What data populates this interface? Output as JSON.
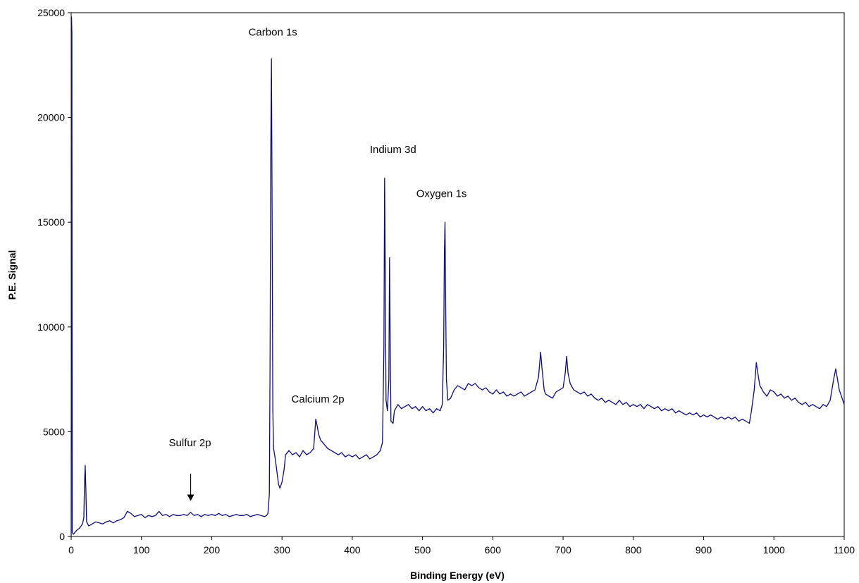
{
  "chart_data": {
    "type": "line",
    "title": "",
    "xlabel": "Binding Energy (eV)",
    "ylabel": "P.E. Signal",
    "xlim": [
      0,
      1100
    ],
    "ylim": [
      0,
      25000
    ],
    "x_ticks": [
      0,
      100,
      200,
      300,
      400,
      500,
      600,
      700,
      800,
      900,
      1000,
      1100
    ],
    "y_ticks": [
      0,
      5000,
      10000,
      15000,
      20000,
      25000
    ],
    "x_tick_labels": [
      "0",
      "100",
      "200",
      "300",
      "400",
      "500",
      "600",
      "700",
      "800",
      "900",
      "1000",
      "1100"
    ],
    "y_tick_labels": [
      "0",
      "5000",
      "10000",
      "15000",
      "20000",
      "25000"
    ],
    "grid": false,
    "legend": "none",
    "line_color": "#0a0a7a",
    "series": [
      {
        "points": [
          [
            0,
            0
          ],
          [
            0.5,
            24800
          ],
          [
            1,
            24000
          ],
          [
            1.5,
            200
          ],
          [
            3,
            100
          ],
          [
            8,
            300
          ],
          [
            12,
            400
          ],
          [
            16,
            600
          ],
          [
            18,
            900
          ],
          [
            19,
            2500
          ],
          [
            20,
            3400
          ],
          [
            21,
            2200
          ],
          [
            22,
            700
          ],
          [
            25,
            500
          ],
          [
            30,
            600
          ],
          [
            35,
            700
          ],
          [
            40,
            650
          ],
          [
            45,
            600
          ],
          [
            50,
            700
          ],
          [
            55,
            750
          ],
          [
            60,
            650
          ],
          [
            65,
            750
          ],
          [
            70,
            800
          ],
          [
            75,
            900
          ],
          [
            80,
            1200
          ],
          [
            85,
            1100
          ],
          [
            90,
            950
          ],
          [
            95,
            1000
          ],
          [
            100,
            1050
          ],
          [
            105,
            900
          ],
          [
            110,
            1000
          ],
          [
            115,
            950
          ],
          [
            120,
            1000
          ],
          [
            125,
            1200
          ],
          [
            130,
            1000
          ],
          [
            135,
            1050
          ],
          [
            140,
            950
          ],
          [
            145,
            1050
          ],
          [
            150,
            1000
          ],
          [
            155,
            1000
          ],
          [
            160,
            1050
          ],
          [
            165,
            1000
          ],
          [
            170,
            1150
          ],
          [
            175,
            1000
          ],
          [
            180,
            1050
          ],
          [
            185,
            950
          ],
          [
            190,
            1050
          ],
          [
            195,
            1000
          ],
          [
            200,
            1050
          ],
          [
            205,
            1000
          ],
          [
            210,
            1100
          ],
          [
            215,
            1000
          ],
          [
            220,
            1050
          ],
          [
            225,
            950
          ],
          [
            230,
            1000
          ],
          [
            235,
            1050
          ],
          [
            240,
            1000
          ],
          [
            245,
            1000
          ],
          [
            250,
            1050
          ],
          [
            255,
            950
          ],
          [
            260,
            1000
          ],
          [
            265,
            1050
          ],
          [
            270,
            1000
          ],
          [
            275,
            950
          ],
          [
            278,
            1000
          ],
          [
            280,
            1100
          ],
          [
            282,
            2000
          ],
          [
            283,
            8000
          ],
          [
            284,
            18000
          ],
          [
            285,
            22800
          ],
          [
            286,
            15000
          ],
          [
            287,
            6000
          ],
          [
            288,
            4200
          ],
          [
            290,
            3800
          ],
          [
            292,
            3300
          ],
          [
            295,
            2500
          ],
          [
            297,
            2300
          ],
          [
            300,
            2600
          ],
          [
            303,
            3200
          ],
          [
            305,
            3900
          ],
          [
            310,
            4100
          ],
          [
            315,
            3900
          ],
          [
            320,
            4000
          ],
          [
            325,
            3800
          ],
          [
            330,
            4100
          ],
          [
            335,
            3900
          ],
          [
            340,
            4000
          ],
          [
            345,
            4200
          ],
          [
            348,
            5600
          ],
          [
            350,
            5300
          ],
          [
            352,
            4900
          ],
          [
            355,
            4600
          ],
          [
            360,
            4400
          ],
          [
            365,
            4200
          ],
          [
            370,
            4100
          ],
          [
            375,
            4000
          ],
          [
            380,
            3900
          ],
          [
            385,
            4000
          ],
          [
            390,
            3800
          ],
          [
            395,
            3900
          ],
          [
            400,
            3800
          ],
          [
            405,
            3900
          ],
          [
            410,
            3700
          ],
          [
            415,
            3800
          ],
          [
            420,
            3900
          ],
          [
            425,
            3700
          ],
          [
            430,
            3800
          ],
          [
            435,
            3900
          ],
          [
            440,
            4100
          ],
          [
            443,
            4500
          ],
          [
            445,
            9000
          ],
          [
            446,
            17100
          ],
          [
            447,
            12000
          ],
          [
            448,
            6500
          ],
          [
            450,
            6000
          ],
          [
            452,
            7500
          ],
          [
            453,
            13300
          ],
          [
            454,
            9000
          ],
          [
            455,
            5500
          ],
          [
            458,
            5400
          ],
          [
            460,
            6000
          ],
          [
            465,
            6300
          ],
          [
            470,
            6100
          ],
          [
            475,
            6200
          ],
          [
            480,
            6300
          ],
          [
            485,
            6100
          ],
          [
            490,
            6200
          ],
          [
            495,
            6000
          ],
          [
            500,
            6200
          ],
          [
            505,
            6000
          ],
          [
            510,
            6100
          ],
          [
            515,
            5900
          ],
          [
            520,
            6100
          ],
          [
            525,
            6000
          ],
          [
            528,
            6300
          ],
          [
            530,
            9000
          ],
          [
            531,
            13500
          ],
          [
            532,
            15000
          ],
          [
            533,
            11000
          ],
          [
            534,
            7500
          ],
          [
            536,
            6500
          ],
          [
            540,
            6600
          ],
          [
            545,
            7000
          ],
          [
            550,
            7200
          ],
          [
            555,
            7100
          ],
          [
            560,
            7000
          ],
          [
            565,
            7300
          ],
          [
            570,
            7200
          ],
          [
            575,
            7300
          ],
          [
            580,
            7100
          ],
          [
            585,
            7000
          ],
          [
            590,
            7100
          ],
          [
            595,
            6900
          ],
          [
            600,
            6800
          ],
          [
            605,
            7000
          ],
          [
            610,
            6800
          ],
          [
            615,
            6900
          ],
          [
            620,
            6700
          ],
          [
            625,
            6800
          ],
          [
            630,
            6700
          ],
          [
            635,
            6800
          ],
          [
            640,
            6900
          ],
          [
            645,
            6700
          ],
          [
            650,
            6800
          ],
          [
            655,
            6900
          ],
          [
            660,
            7000
          ],
          [
            665,
            7600
          ],
          [
            668,
            8800
          ],
          [
            670,
            8000
          ],
          [
            673,
            7000
          ],
          [
            675,
            6800
          ],
          [
            680,
            6700
          ],
          [
            685,
            6600
          ],
          [
            690,
            6900
          ],
          [
            695,
            7000
          ],
          [
            700,
            7100
          ],
          [
            703,
            7800
          ],
          [
            705,
            8600
          ],
          [
            707,
            7800
          ],
          [
            710,
            7300
          ],
          [
            715,
            7000
          ],
          [
            720,
            6900
          ],
          [
            725,
            6800
          ],
          [
            730,
            6900
          ],
          [
            735,
            6700
          ],
          [
            740,
            6800
          ],
          [
            745,
            6600
          ],
          [
            750,
            6500
          ],
          [
            755,
            6600
          ],
          [
            760,
            6400
          ],
          [
            765,
            6500
          ],
          [
            770,
            6400
          ],
          [
            775,
            6300
          ],
          [
            780,
            6500
          ],
          [
            785,
            6300
          ],
          [
            790,
            6400
          ],
          [
            795,
            6200
          ],
          [
            800,
            6300
          ],
          [
            805,
            6200
          ],
          [
            810,
            6300
          ],
          [
            815,
            6100
          ],
          [
            820,
            6300
          ],
          [
            825,
            6200
          ],
          [
            830,
            6100
          ],
          [
            835,
            6200
          ],
          [
            840,
            6000
          ],
          [
            845,
            6100
          ],
          [
            850,
            6000
          ],
          [
            855,
            6100
          ],
          [
            860,
            5900
          ],
          [
            865,
            6000
          ],
          [
            870,
            5900
          ],
          [
            875,
            5800
          ],
          [
            880,
            5900
          ],
          [
            885,
            5800
          ],
          [
            890,
            5900
          ],
          [
            895,
            5700
          ],
          [
            900,
            5800
          ],
          [
            905,
            5700
          ],
          [
            910,
            5800
          ],
          [
            915,
            5700
          ],
          [
            920,
            5600
          ],
          [
            925,
            5700
          ],
          [
            930,
            5600
          ],
          [
            935,
            5700
          ],
          [
            940,
            5600
          ],
          [
            945,
            5700
          ],
          [
            950,
            5500
          ],
          [
            955,
            5600
          ],
          [
            960,
            5500
          ],
          [
            965,
            5400
          ],
          [
            968,
            6000
          ],
          [
            972,
            7000
          ],
          [
            975,
            8300
          ],
          [
            978,
            7600
          ],
          [
            980,
            7200
          ],
          [
            985,
            6900
          ],
          [
            990,
            6700
          ],
          [
            995,
            7000
          ],
          [
            1000,
            6900
          ],
          [
            1005,
            6700
          ],
          [
            1010,
            6800
          ],
          [
            1015,
            6600
          ],
          [
            1020,
            6700
          ],
          [
            1025,
            6500
          ],
          [
            1030,
            6600
          ],
          [
            1035,
            6400
          ],
          [
            1040,
            6300
          ],
          [
            1045,
            6400
          ],
          [
            1050,
            6200
          ],
          [
            1055,
            6300
          ],
          [
            1060,
            6200
          ],
          [
            1065,
            6100
          ],
          [
            1070,
            6300
          ],
          [
            1075,
            6200
          ],
          [
            1080,
            6500
          ],
          [
            1085,
            7500
          ],
          [
            1088,
            8000
          ],
          [
            1090,
            7600
          ],
          [
            1093,
            7000
          ],
          [
            1095,
            6800
          ],
          [
            1098,
            6500
          ],
          [
            1100,
            6300
          ]
        ]
      }
    ],
    "annotations": [
      {
        "text": "Carbon 1s",
        "x": 287,
        "y": 23900
      },
      {
        "text": "Indium 3d",
        "x": 458,
        "y": 18300
      },
      {
        "text": "Oxygen 1s",
        "x": 527,
        "y": 16200
      },
      {
        "text": "Calcium 2p",
        "x": 351,
        "y": 6400
      },
      {
        "text": "Sulfur 2p",
        "x": 169,
        "y": 4300
      }
    ],
    "arrow": {
      "x": 170,
      "y_start": 3000,
      "y_end": 1700
    }
  }
}
